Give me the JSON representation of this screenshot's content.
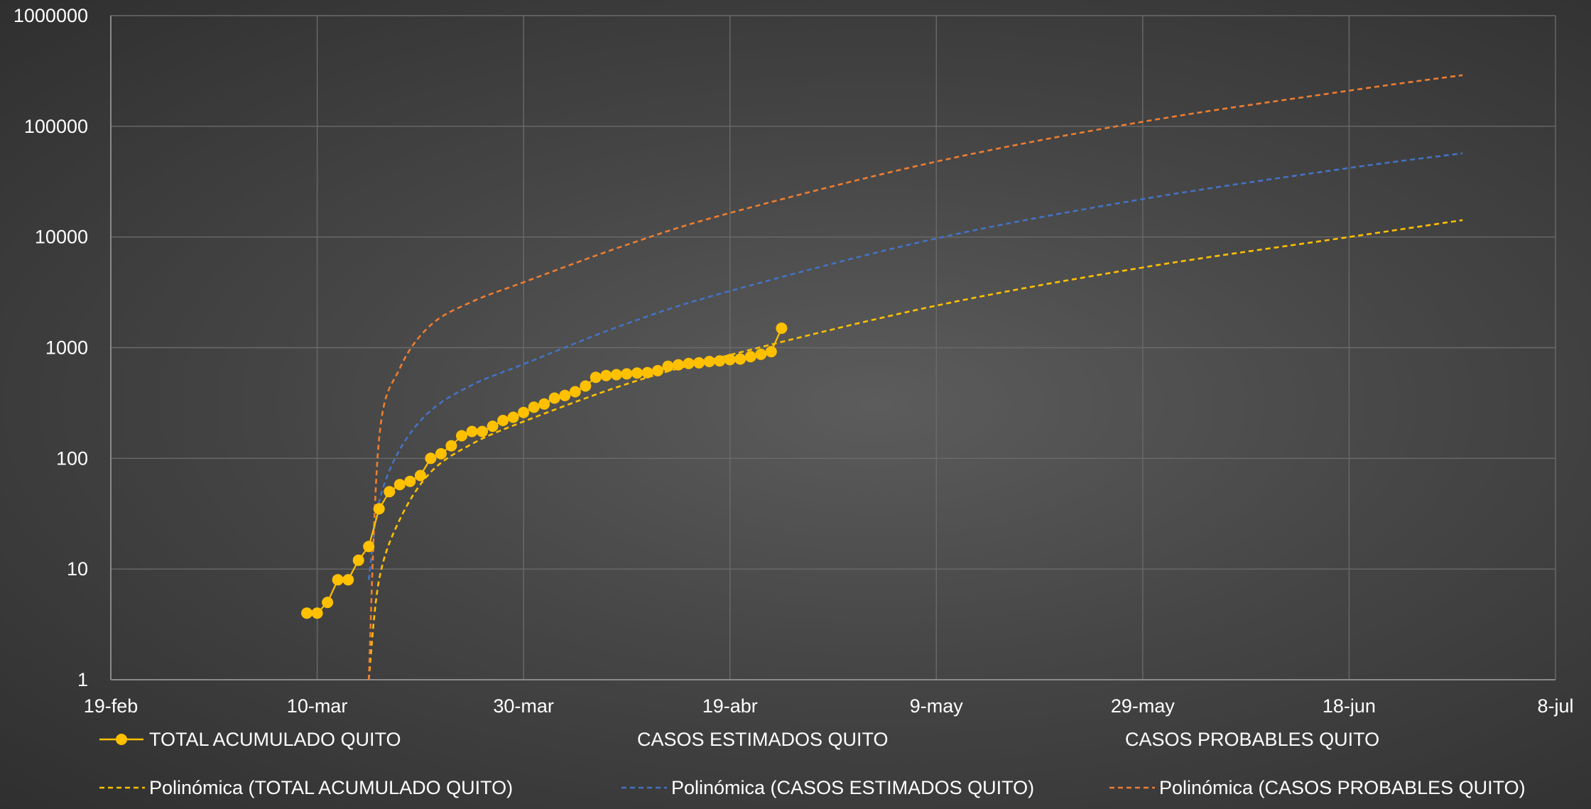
{
  "chart_data": {
    "type": "line",
    "y_scale": "log",
    "ylim": [
      1,
      1000000
    ],
    "y_ticks": [
      "1",
      "10",
      "100",
      "1000",
      "10000",
      "100000",
      "1000000"
    ],
    "xlim": [
      "19-feb",
      "8-jul"
    ],
    "x_ticks": [
      "19-feb",
      "10-mar",
      "30-mar",
      "19-abr",
      "9-may",
      "29-may",
      "18-jun",
      "8-jul"
    ],
    "grid": true,
    "legend_position": "bottom",
    "legend_rows": [
      [
        "TOTAL ACUMULADO QUITO",
        "CASOS ESTIMADOS QUITO",
        "CASOS PROBABLES QUITO"
      ],
      [
        "Polinómica (TOTAL ACUMULADO QUITO)",
        "Polinómica (CASOS ESTIMADOS QUITO)",
        "Polinómica (CASOS PROBABLES QUITO)"
      ]
    ],
    "series": [
      {
        "name": "TOTAL ACUMULADO QUITO",
        "style": "solid-markers",
        "color": "#FFC000",
        "x": [
          "9-mar",
          "10-mar",
          "11-mar",
          "12-mar",
          "13-mar",
          "14-mar",
          "15-mar",
          "16-mar",
          "17-mar",
          "18-mar",
          "19-mar",
          "20-mar",
          "21-mar",
          "22-mar",
          "23-mar",
          "24-mar",
          "25-mar",
          "26-mar",
          "27-mar",
          "28-mar",
          "29-mar",
          "30-mar",
          "31-mar",
          "1-abr",
          "2-abr",
          "3-abr",
          "4-abr",
          "5-abr",
          "6-abr",
          "7-abr",
          "8-abr",
          "9-abr",
          "10-abr",
          "11-abr",
          "12-abr",
          "13-abr",
          "14-abr",
          "15-abr",
          "16-abr",
          "17-abr",
          "18-abr",
          "19-abr",
          "20-abr",
          "21-abr",
          "22-abr",
          "23-abr",
          "24-abr"
        ],
        "y": [
          4,
          4,
          5,
          8,
          8,
          12,
          16,
          35,
          50,
          58,
          62,
          70,
          100,
          110,
          130,
          160,
          175,
          175,
          195,
          220,
          235,
          260,
          290,
          310,
          350,
          370,
          400,
          450,
          540,
          560,
          570,
          580,
          590,
          595,
          620,
          680,
          700,
          720,
          730,
          750,
          760,
          780,
          790,
          830,
          870,
          920,
          1500
        ]
      }
    ],
    "trendlines": [
      {
        "name": "Polinómica (TOTAL ACUMULADO QUITO)",
        "color": "#FFC000",
        "style": "dashed",
        "x": [
          "15-mar",
          "16-mar",
          "18-mar",
          "21-mar",
          "25-mar",
          "30-mar",
          "9-abr",
          "19-abr",
          "9-may",
          "29-may",
          "18-jun",
          "29-jun"
        ],
        "y": [
          1,
          8,
          28,
          75,
          135,
          215,
          470,
          860,
          2400,
          5300,
          10000,
          14200
        ]
      },
      {
        "name": "Polinómica (CASOS ESTIMADOS QUITO)",
        "color": "#4472C4",
        "style": "dashed",
        "x": [
          "15-mar",
          "16-mar",
          "18-mar",
          "21-mar",
          "25-mar",
          "30-mar",
          "9-abr",
          "19-abr",
          "9-may",
          "29-may",
          "18-jun",
          "29-jun"
        ],
        "y": [
          8,
          40,
          120,
          270,
          460,
          710,
          1650,
          3250,
          9700,
          22000,
          42000,
          57000
        ]
      },
      {
        "name": "Polinómica (CASOS PROBABLES QUITO)",
        "color": "#ED7D31",
        "style": "dashed",
        "x": [
          "15-mar",
          "16-mar",
          "18-mar",
          "21-mar",
          "25-mar",
          "30-mar",
          "9-abr",
          "19-abr",
          "9-may",
          "29-may",
          "18-jun",
          "29-jun"
        ],
        "y": [
          1,
          150,
          650,
          1600,
          2600,
          3900,
          8500,
          16500,
          48000,
          110000,
          210000,
          290000
        ]
      }
    ]
  }
}
